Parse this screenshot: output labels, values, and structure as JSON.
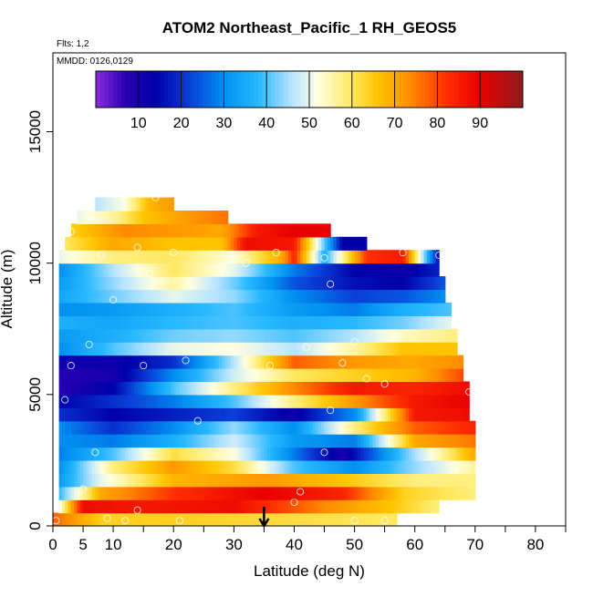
{
  "chart_data": {
    "type": "heatmap",
    "title": "ATOM2 Northeast_Pacific_1 RH_GEOS5",
    "flights_label": "Flts: 1,2",
    "dates_label": "MMDD: 0126,0129",
    "xlabel": "Latitude (deg N)",
    "ylabel": "Altitude (m)",
    "xlim": [
      0,
      85
    ],
    "ylim": [
      0,
      18000
    ],
    "x_ticks": [
      0,
      5,
      10,
      20,
      30,
      40,
      50,
      60,
      70,
      80
    ],
    "x_minor_ticks": [
      15,
      25,
      35,
      45,
      55,
      65,
      75,
      85
    ],
    "y_ticks": [
      0,
      5000,
      10000,
      15000
    ],
    "colorbar": {
      "ticks": [
        10,
        20,
        30,
        40,
        50,
        60,
        70,
        80,
        90
      ],
      "range": [
        0,
        100
      ]
    },
    "value_stops": [
      [
        0,
        "#8a2be2"
      ],
      [
        7,
        "#2a00b0"
      ],
      [
        14,
        "#0000aa"
      ],
      [
        22,
        "#0a3fd8"
      ],
      [
        30,
        "#0090f0"
      ],
      [
        38,
        "#28b8ff"
      ],
      [
        46,
        "#b8e4ff"
      ],
      [
        52,
        "#ffffe0"
      ],
      [
        60,
        "#ffe860"
      ],
      [
        66,
        "#ffc400"
      ],
      [
        74,
        "#ff8a00"
      ],
      [
        82,
        "#ff3000"
      ],
      [
        90,
        "#e80000"
      ],
      [
        100,
        "#901c1c"
      ]
    ],
    "rows": [
      {
        "alt": 250,
        "lat": [
          0,
          57
        ],
        "values": [
          [
            0,
            78
          ],
          [
            8,
            64
          ],
          [
            20,
            64
          ],
          [
            40,
            62
          ],
          [
            57,
            60
          ]
        ]
      },
      {
        "alt": 750,
        "lat": [
          1,
          64
        ],
        "values": [
          [
            1,
            50
          ],
          [
            5,
            88
          ],
          [
            15,
            86
          ],
          [
            30,
            88
          ],
          [
            45,
            74
          ],
          [
            56,
            66
          ],
          [
            64,
            58
          ]
        ]
      },
      {
        "alt": 1250,
        "lat": [
          1,
          70
        ],
        "values": [
          [
            1,
            38
          ],
          [
            8,
            70
          ],
          [
            20,
            82
          ],
          [
            35,
            90
          ],
          [
            48,
            84
          ],
          [
            58,
            64
          ],
          [
            70,
            58
          ]
        ]
      },
      {
        "alt": 1750,
        "lat": [
          1,
          70
        ],
        "values": [
          [
            1,
            32
          ],
          [
            8,
            50
          ],
          [
            20,
            68
          ],
          [
            35,
            72
          ],
          [
            48,
            66
          ],
          [
            60,
            58
          ],
          [
            70,
            58
          ]
        ]
      },
      {
        "alt": 2250,
        "lat": [
          1,
          70
        ],
        "values": [
          [
            1,
            30
          ],
          [
            10,
            58
          ],
          [
            20,
            72
          ],
          [
            30,
            62
          ],
          [
            40,
            40
          ],
          [
            50,
            30
          ],
          [
            60,
            44
          ],
          [
            70,
            56
          ]
        ]
      },
      {
        "alt": 2750,
        "lat": [
          1,
          70
        ],
        "values": [
          [
            1,
            28
          ],
          [
            10,
            40
          ],
          [
            20,
            62
          ],
          [
            30,
            52
          ],
          [
            40,
            28
          ],
          [
            48,
            10
          ],
          [
            58,
            40
          ],
          [
            70,
            70
          ]
        ]
      },
      {
        "alt": 3250,
        "lat": [
          1,
          70
        ],
        "values": [
          [
            1,
            30
          ],
          [
            10,
            28
          ],
          [
            20,
            36
          ],
          [
            30,
            48
          ],
          [
            40,
            32
          ],
          [
            50,
            28
          ],
          [
            60,
            70
          ],
          [
            70,
            76
          ]
        ]
      },
      {
        "alt": 3750,
        "lat": [
          1,
          70
        ],
        "values": [
          [
            1,
            30
          ],
          [
            10,
            20
          ],
          [
            20,
            30
          ],
          [
            30,
            44
          ],
          [
            40,
            30
          ],
          [
            50,
            58
          ],
          [
            60,
            78
          ],
          [
            70,
            84
          ]
        ]
      },
      {
        "alt": 4250,
        "lat": [
          1,
          69
        ],
        "values": [
          [
            1,
            20
          ],
          [
            10,
            14
          ],
          [
            20,
            18
          ],
          [
            30,
            22
          ],
          [
            40,
            12
          ],
          [
            50,
            30
          ],
          [
            60,
            86
          ],
          [
            69,
            88
          ]
        ]
      },
      {
        "alt": 4750,
        "lat": [
          1,
          69
        ],
        "values": [
          [
            1,
            14
          ],
          [
            10,
            20
          ],
          [
            20,
            28
          ],
          [
            30,
            40
          ],
          [
            40,
            58
          ],
          [
            50,
            72
          ],
          [
            60,
            86
          ],
          [
            69,
            90
          ]
        ]
      },
      {
        "alt": 5250,
        "lat": [
          1,
          69
        ],
        "values": [
          [
            1,
            8
          ],
          [
            10,
            14
          ],
          [
            20,
            40
          ],
          [
            30,
            58
          ],
          [
            40,
            74
          ],
          [
            50,
            86
          ],
          [
            60,
            84
          ],
          [
            69,
            88
          ]
        ]
      },
      {
        "alt": 5750,
        "lat": [
          1,
          68
        ],
        "values": [
          [
            1,
            8
          ],
          [
            10,
            10
          ],
          [
            20,
            30
          ],
          [
            30,
            48
          ],
          [
            40,
            60
          ],
          [
            50,
            64
          ],
          [
            60,
            68
          ],
          [
            68,
            80
          ]
        ]
      },
      {
        "alt": 6250,
        "lat": [
          1,
          68
        ],
        "values": [
          [
            1,
            12
          ],
          [
            10,
            12
          ],
          [
            20,
            20
          ],
          [
            30,
            46
          ],
          [
            40,
            78
          ],
          [
            50,
            72
          ],
          [
            60,
            70
          ],
          [
            68,
            74
          ]
        ]
      },
      {
        "alt": 6750,
        "lat": [
          1,
          67
        ],
        "values": [
          [
            1,
            30
          ],
          [
            10,
            40
          ],
          [
            20,
            50
          ],
          [
            30,
            52
          ],
          [
            40,
            46
          ],
          [
            50,
            56
          ],
          [
            58,
            66
          ],
          [
            67,
            66
          ]
        ]
      },
      {
        "alt": 7250,
        "lat": [
          1,
          67
        ],
        "values": [
          [
            1,
            32
          ],
          [
            10,
            36
          ],
          [
            20,
            42
          ],
          [
            30,
            44
          ],
          [
            40,
            40
          ],
          [
            50,
            46
          ],
          [
            58,
            54
          ],
          [
            67,
            58
          ]
        ]
      },
      {
        "alt": 7750,
        "lat": [
          1,
          66
        ],
        "values": [
          [
            1,
            36
          ],
          [
            10,
            34
          ],
          [
            20,
            38
          ],
          [
            30,
            40
          ],
          [
            40,
            36
          ],
          [
            50,
            38
          ],
          [
            58,
            42
          ],
          [
            66,
            50
          ]
        ]
      },
      {
        "alt": 8250,
        "lat": [
          1,
          66
        ],
        "values": [
          [
            1,
            30
          ],
          [
            10,
            32
          ],
          [
            20,
            36
          ],
          [
            30,
            40
          ],
          [
            40,
            32
          ],
          [
            50,
            28
          ],
          [
            58,
            36
          ],
          [
            66,
            40
          ]
        ]
      },
      {
        "alt": 8750,
        "lat": [
          1,
          65
        ],
        "values": [
          [
            1,
            34
          ],
          [
            10,
            42
          ],
          [
            20,
            50
          ],
          [
            30,
            44
          ],
          [
            40,
            30
          ],
          [
            50,
            22
          ],
          [
            58,
            24
          ],
          [
            65,
            30
          ]
        ]
      },
      {
        "alt": 9250,
        "lat": [
          1,
          65
        ],
        "values": [
          [
            1,
            32
          ],
          [
            10,
            44
          ],
          [
            20,
            56
          ],
          [
            30,
            42
          ],
          [
            40,
            24
          ],
          [
            50,
            16
          ],
          [
            58,
            14
          ],
          [
            65,
            24
          ]
        ]
      },
      {
        "alt": 9750,
        "lat": [
          1,
          64
        ],
        "values": [
          [
            1,
            30
          ],
          [
            10,
            46
          ],
          [
            20,
            60
          ],
          [
            30,
            50
          ],
          [
            40,
            28
          ],
          [
            50,
            14
          ],
          [
            58,
            12
          ],
          [
            64,
            18
          ]
        ]
      },
      {
        "alt": 10250,
        "lat": [
          1,
          64
        ],
        "values": [
          [
            1,
            50
          ],
          [
            10,
            58
          ],
          [
            20,
            60
          ],
          [
            30,
            52
          ],
          [
            38,
            70
          ],
          [
            40,
            84
          ],
          [
            45,
            36
          ],
          [
            52,
            82
          ],
          [
            58,
            86
          ],
          [
            64,
            14
          ]
        ]
      },
      {
        "alt": 10750,
        "lat": [
          2,
          52
        ],
        "values": [
          [
            2,
            60
          ],
          [
            10,
            70
          ],
          [
            20,
            66
          ],
          [
            28,
            66
          ],
          [
            32,
            88
          ],
          [
            40,
            86
          ],
          [
            48,
            14
          ],
          [
            52,
            14
          ]
        ]
      },
      {
        "alt": 11250,
        "lat": [
          3,
          46
        ],
        "values": [
          [
            3,
            64
          ],
          [
            12,
            74
          ],
          [
            20,
            72
          ],
          [
            28,
            70
          ],
          [
            34,
            86
          ],
          [
            40,
            90
          ],
          [
            46,
            90
          ]
        ]
      },
      {
        "alt": 11750,
        "lat": [
          4,
          29
        ],
        "values": [
          [
            4,
            50
          ],
          [
            10,
            56
          ],
          [
            15,
            66
          ],
          [
            20,
            70
          ],
          [
            25,
            74
          ],
          [
            29,
            76
          ]
        ]
      },
      {
        "alt": 12250,
        "lat": [
          7,
          20
        ],
        "values": [
          [
            7,
            46
          ],
          [
            12,
            52
          ],
          [
            16,
            68
          ],
          [
            20,
            72
          ]
        ]
      }
    ],
    "markers": [
      [
        0.5,
        200
      ],
      [
        2,
        4800
      ],
      [
        5,
        1400
      ],
      [
        9,
        300
      ],
      [
        12,
        200
      ],
      [
        14,
        600
      ],
      [
        15,
        6100
      ],
      [
        21,
        200
      ],
      [
        22,
        6300
      ],
      [
        24,
        4000
      ],
      [
        3,
        6100
      ],
      [
        6,
        6900
      ],
      [
        7,
        2800
      ],
      [
        10,
        8600
      ],
      [
        14,
        10600
      ],
      [
        17,
        12500
      ],
      [
        3,
        11200
      ],
      [
        8,
        10300
      ],
      [
        16,
        9600
      ],
      [
        20,
        10400
      ],
      [
        29,
        10100
      ],
      [
        32,
        10000
      ],
      [
        37,
        10400
      ],
      [
        45,
        10200
      ],
      [
        58,
        10400
      ],
      [
        64,
        10300
      ],
      [
        46,
        9200
      ],
      [
        50,
        7000
      ],
      [
        48,
        6200
      ],
      [
        52,
        5600
      ],
      [
        55,
        5400
      ],
      [
        57,
        7200
      ],
      [
        42,
        6800
      ],
      [
        36,
        6100
      ],
      [
        46,
        4400
      ],
      [
        45,
        2800
      ],
      [
        40,
        900
      ],
      [
        41,
        1300
      ],
      [
        50,
        200
      ],
      [
        55,
        200
      ],
      [
        69,
        5100
      ]
    ],
    "arrow_lat": 35
  }
}
